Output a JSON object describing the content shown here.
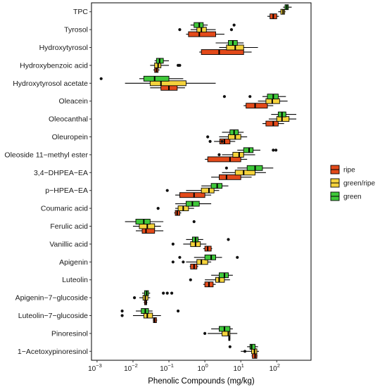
{
  "chart_data": {
    "type": "boxplot",
    "orientation": "horizontal",
    "xlabel": "Phenolic Compounds (mg/kg)",
    "ylabel": "",
    "xscale": "log10",
    "xlim": [
      0.0007,
      900
    ],
    "x_ticks": [
      {
        "value": 0.001,
        "base": "10",
        "exp": "−3"
      },
      {
        "value": 0.01,
        "base": "10",
        "exp": "−2"
      },
      {
        "value": 0.1,
        "base": "10",
        "exp": "−1"
      },
      {
        "value": 1,
        "base": "10",
        "exp": "0"
      },
      {
        "value": 10,
        "base": "10",
        "exp": "1"
      },
      {
        "value": 100,
        "base": "10",
        "exp": "2"
      }
    ],
    "grid": false,
    "legend": {
      "placement": "right",
      "items": [
        {
          "name": "ripe",
          "color": "#e34a1a"
        },
        {
          "name": "green/ripe",
          "color": "#f5d33c"
        },
        {
          "name": "green",
          "color": "#3fc83a"
        }
      ]
    },
    "categories": [
      "TPC",
      "Tyrosol",
      "Hydroxytyrosol",
      "Hydroxybenzoic acid",
      "Hydroxytyrosol acetate",
      "Oleacein",
      "Oleocanthal",
      "Oleuropein",
      "Oleoside 11−methyl ester",
      "3,4−DHPEA−EA",
      "p−HPEA−EA",
      "Coumaric acid",
      "Ferulic acid",
      "Vanillic acid",
      "Apigenin",
      "Luteolin",
      "Apigenin−7−glucoside",
      "Luteolin−7−glucoside",
      "Pinoresinol",
      "1−Acetoxypinoresinol"
    ],
    "series": [
      {
        "name": "ripe",
        "boxes": [
          {
            "whislo": 55,
            "q1": 65,
            "med": 80,
            "q3": 100,
            "whishi": 115,
            "outliers": []
          },
          {
            "whislo": 0.3,
            "q1": 0.35,
            "med": 0.7,
            "q3": 2.0,
            "whishi": 3.5,
            "outliers": []
          },
          {
            "whislo": 0.7,
            "q1": 0.8,
            "med": 2.5,
            "q3": 12,
            "whishi": 20,
            "outliers": []
          },
          {
            "whislo": 0.037,
            "q1": 0.04,
            "med": 0.045,
            "q3": 0.05,
            "whishi": 0.055,
            "outliers": []
          },
          {
            "whislo": 0.03,
            "q1": 0.06,
            "med": 0.1,
            "q3": 0.17,
            "whishi": 0.28,
            "outliers": []
          },
          {
            "whislo": 12,
            "q1": 14,
            "med": 25,
            "q3": 55,
            "whishi": 80,
            "outliers": []
          },
          {
            "whislo": 40,
            "q1": 50,
            "med": 80,
            "q3": 110,
            "whishi": 160,
            "outliers": []
          },
          {
            "whislo": 1.8,
            "q1": 2.6,
            "med": 3.5,
            "q3": 5,
            "whishi": 7,
            "outliers": [
              1.4,
              3.0
            ]
          },
          {
            "whislo": 1,
            "q1": 1.2,
            "med": 5,
            "q3": 10,
            "whishi": 15,
            "outliers": []
          },
          {
            "whislo": 1.5,
            "q1": 2.5,
            "med": 4,
            "q3": 10,
            "whishi": 20,
            "outliers": []
          },
          {
            "whislo": 0.15,
            "q1": 0.2,
            "med": 0.5,
            "q3": 1.0,
            "whishi": 1.5,
            "outliers": []
          },
          {
            "whislo": 0.14,
            "q1": 0.15,
            "med": 0.17,
            "q3": 0.2,
            "whishi": 0.22,
            "outliers": []
          },
          {
            "whislo": 0.012,
            "q1": 0.018,
            "med": 0.023,
            "q3": 0.04,
            "whishi": 0.07,
            "outliers": []
          },
          {
            "whislo": 0.9,
            "q1": 1.0,
            "med": 1.2,
            "q3": 1.5,
            "whishi": 1.6,
            "outliers": []
          },
          {
            "whislo": 0.38,
            "q1": 0.4,
            "med": 0.5,
            "q3": 0.6,
            "whishi": 0.65,
            "outliers": []
          },
          {
            "whislo": 0.9,
            "q1": 1.0,
            "med": 1.3,
            "q3": 1.7,
            "whishi": 2.0,
            "outliers": []
          },
          {
            "whislo": 0.02,
            "q1": 0.021,
            "med": 0.023,
            "q3": 0.024,
            "whishi": 0.025,
            "outliers": []
          },
          {
            "whislo": 0.036,
            "q1": 0.037,
            "med": 0.04,
            "q3": 0.045,
            "whishi": 0.047,
            "outliers": []
          },
          {
            "whislo": 4.5,
            "q1": 4.6,
            "med": 4.8,
            "q3": 5.0,
            "whishi": 5.1,
            "outliers": []
          },
          {
            "whislo": 20,
            "q1": 21,
            "med": 25,
            "q3": 28,
            "whishi": 29,
            "outliers": []
          }
        ]
      },
      {
        "name": "green/ripe",
        "boxes": [
          {
            "whislo": 110,
            "q1": 130,
            "med": 150,
            "q3": 165,
            "whishi": 175,
            "outliers": []
          },
          {
            "whislo": 0.4,
            "q1": 0.6,
            "med": 0.8,
            "q3": 1.1,
            "whishi": 2,
            "outliers": [
              0.2,
              5.5
            ]
          },
          {
            "whislo": 2.5,
            "q1": 4,
            "med": 7,
            "q3": 12,
            "whishi": 30,
            "outliers": []
          },
          {
            "whislo": 0.03,
            "q1": 0.04,
            "med": 0.05,
            "q3": 0.06,
            "whishi": 0.1,
            "outliers": [
              0.18,
              0.2
            ]
          },
          {
            "whislo": 0.006,
            "q1": 0.03,
            "med": 0.06,
            "q3": 0.3,
            "whishi": 2,
            "outliers": []
          },
          {
            "whislo": 30,
            "q1": 50,
            "med": 75,
            "q3": 120,
            "whishi": 200,
            "outliers": []
          },
          {
            "whislo": 60,
            "q1": 100,
            "med": 140,
            "q3": 220,
            "whishi": 350,
            "outliers": []
          },
          {
            "whislo": 2.5,
            "q1": 4.5,
            "med": 7,
            "q3": 10,
            "whishi": 15,
            "outliers": [
              1.2
            ]
          },
          {
            "whislo": 3,
            "q1": 6,
            "med": 9,
            "q3": 12,
            "whishi": 25,
            "outliers": [
              2.5
            ]
          },
          {
            "whislo": 3,
            "q1": 7,
            "med": 12,
            "q3": 25,
            "whishi": 50,
            "outliers": []
          },
          {
            "whislo": 0.3,
            "q1": 0.8,
            "med": 1.3,
            "q3": 1.8,
            "whishi": 2.5,
            "outliers": [
              0.09
            ]
          },
          {
            "whislo": 0.15,
            "q1": 0.18,
            "med": 0.25,
            "q3": 0.35,
            "whishi": 0.5,
            "outliers": [
              0.05
            ]
          },
          {
            "whislo": 0.01,
            "q1": 0.015,
            "med": 0.025,
            "q3": 0.04,
            "whishi": 0.06,
            "outliers": []
          },
          {
            "whislo": 0.25,
            "q1": 0.4,
            "med": 0.55,
            "q3": 0.75,
            "whishi": 1.1,
            "outliers": [
              0.13
            ]
          },
          {
            "whislo": 0.3,
            "q1": 0.6,
            "med": 0.8,
            "q3": 1.2,
            "whishi": 1.5,
            "outliers": [
              0.13,
              0.25
            ]
          },
          {
            "whislo": 1.0,
            "q1": 2.0,
            "med": 2.5,
            "q3": 3.5,
            "whishi": 5,
            "outliers": [
              0.4
            ]
          },
          {
            "whislo": 0.015,
            "q1": 0.019,
            "med": 0.022,
            "q3": 0.026,
            "whishi": 0.03,
            "outliers": [
              0.011
            ]
          },
          {
            "whislo": 0.01,
            "q1": 0.02,
            "med": 0.025,
            "q3": 0.035,
            "whishi": 0.06,
            "outliers": [
              0.005
            ]
          },
          {
            "whislo": 1.2,
            "q1": 3,
            "med": 4.5,
            "q3": 5,
            "whishi": 8,
            "outliers": [
              1.0
            ]
          },
          {
            "whislo": 10,
            "q1": 20,
            "med": 24,
            "q3": 28,
            "whishi": 32,
            "outliers": [
              13
            ]
          }
        ]
      },
      {
        "name": "green",
        "boxes": [
          {
            "whislo": 150,
            "q1": 170,
            "med": 190,
            "q3": 210,
            "whishi": 260,
            "outliers": []
          },
          {
            "whislo": 0.4,
            "q1": 0.5,
            "med": 0.7,
            "q3": 0.9,
            "whishi": 1.2,
            "outliers": [
              6.5
            ]
          },
          {
            "whislo": 2,
            "q1": 4.5,
            "med": 6,
            "q3": 8,
            "whishi": 12,
            "outliers": []
          },
          {
            "whislo": 0.04,
            "q1": 0.045,
            "med": 0.055,
            "q3": 0.07,
            "whishi": 0.1,
            "outliers": []
          },
          {
            "whislo": 0.015,
            "q1": 0.02,
            "med": 0.04,
            "q3": 0.1,
            "whishi": 0.25,
            "outliers": [
              0.0013
            ]
          },
          {
            "whislo": 40,
            "q1": 55,
            "med": 80,
            "q3": 110,
            "whishi": 180,
            "outliers": [
              3.5,
              18
            ]
          },
          {
            "whislo": 70,
            "q1": 110,
            "med": 140,
            "q3": 180,
            "whishi": 350,
            "outliers": []
          },
          {
            "whislo": 3,
            "q1": 5,
            "med": 6.5,
            "q3": 8.5,
            "whishi": 12,
            "outliers": []
          },
          {
            "whislo": 8,
            "q1": 12,
            "med": 17,
            "q3": 22,
            "whishi": 35,
            "outliers": [
              80,
              95
            ]
          },
          {
            "whislo": 8,
            "q1": 15,
            "med": 25,
            "q3": 40,
            "whishi": 80,
            "outliers": [
              4
            ]
          },
          {
            "whislo": 0.8,
            "q1": 1.5,
            "med": 2.2,
            "q3": 3,
            "whishi": 4.5,
            "outliers": []
          },
          {
            "whislo": 0.15,
            "q1": 0.3,
            "med": 0.45,
            "q3": 0.7,
            "whishi": 1.5,
            "outliers": []
          },
          {
            "whislo": 0.006,
            "q1": 0.012,
            "med": 0.02,
            "q3": 0.03,
            "whishi": 0.07,
            "outliers": [
              0.5
            ]
          },
          {
            "whislo": 0.3,
            "q1": 0.45,
            "med": 0.55,
            "q3": 0.65,
            "whishi": 0.9,
            "outliers": [
              4.5
            ]
          },
          {
            "whislo": 0.5,
            "q1": 1.0,
            "med": 1.5,
            "q3": 2,
            "whishi": 3,
            "outliers": [
              0.2,
              8
            ]
          },
          {
            "whislo": 1.5,
            "q1": 2.5,
            "med": 3.5,
            "q3": 4.5,
            "whishi": 6,
            "outliers": []
          },
          {
            "whislo": 0.018,
            "q1": 0.021,
            "med": 0.024,
            "q3": 0.027,
            "whishi": 0.03,
            "outliers": [
              0.07,
              0.09,
              0.12
            ]
          },
          {
            "whislo": 0.012,
            "q1": 0.017,
            "med": 0.022,
            "q3": 0.027,
            "whishi": 0.035,
            "outliers": [
              0.005,
              0.18
            ]
          },
          {
            "whislo": 1.5,
            "q1": 2.5,
            "med": 3.5,
            "q3": 5,
            "whishi": 6,
            "outliers": []
          },
          {
            "whislo": 15,
            "q1": 18,
            "med": 20,
            "q3": 25,
            "whishi": 30,
            "outliers": [
              5
            ]
          }
        ]
      }
    ]
  }
}
